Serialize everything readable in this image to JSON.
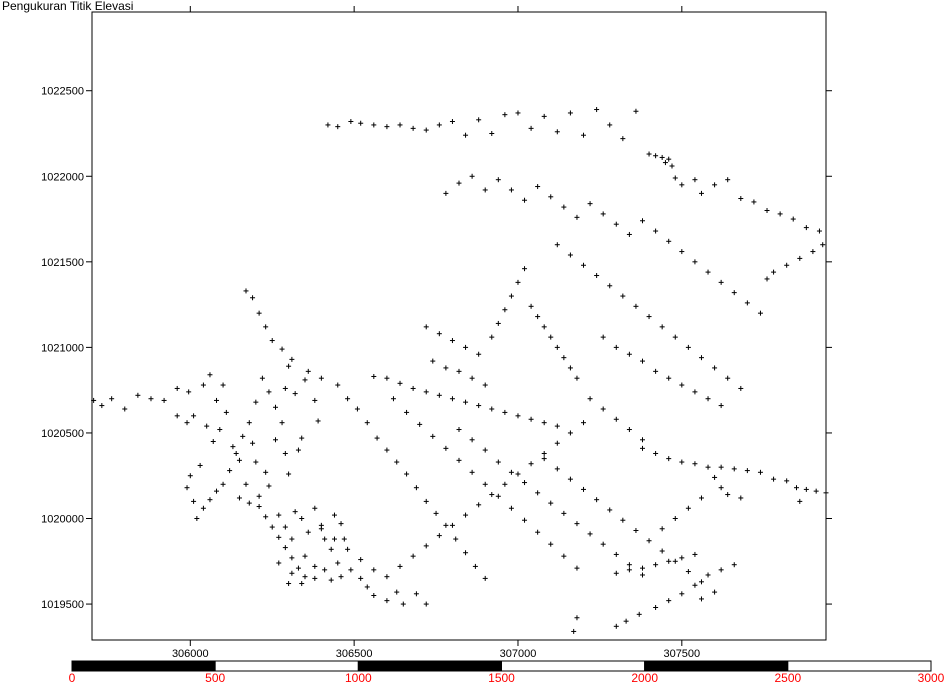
{
  "title": "Pengukuran Titik Elevasi",
  "chart_data": {
    "type": "scatter",
    "marker": "plus",
    "marker_color": "#000000",
    "xlim": [
      305700,
      307940
    ],
    "ylim": [
      1019290,
      1022960
    ],
    "x_ticks": [
      306000,
      306500,
      307000,
      307500
    ],
    "x_tick_labels": [
      "306000",
      "306500",
      "307000",
      "307500"
    ],
    "y_ticks": [
      1019500,
      1020000,
      1020500,
      1021000,
      1021500,
      1022000,
      1022500
    ],
    "y_tick_labels": [
      "1019500",
      "1020000",
      "1020500",
      "1021000",
      "1021500",
      "1022000",
      "1022500"
    ],
    "point_count_note": "",
    "points": [
      [
        305705,
        1020690
      ],
      [
        305730,
        1020660
      ],
      [
        305760,
        1020700
      ],
      [
        305800,
        1020640
      ],
      [
        305840,
        1020720
      ],
      [
        305880,
        1020700
      ],
      [
        305920,
        1020690
      ],
      [
        305960,
        1020760
      ],
      [
        305995,
        1020740
      ],
      [
        306010,
        1020600
      ],
      [
        305990,
        1020560
      ],
      [
        305960,
        1020600
      ],
      [
        306040,
        1020780
      ],
      [
        306060,
        1020840
      ],
      [
        306050,
        1020540
      ],
      [
        306080,
        1020690
      ],
      [
        306090,
        1020520
      ],
      [
        306100,
        1020780
      ],
      [
        306070,
        1020450
      ],
      [
        306030,
        1020310
      ],
      [
        306000,
        1020250
      ],
      [
        305990,
        1020180
      ],
      [
        306010,
        1020100
      ],
      [
        306110,
        1020620
      ],
      [
        306130,
        1020420
      ],
      [
        306150,
        1020340
      ],
      [
        306170,
        1020200
      ],
      [
        306190,
        1020440
      ],
      [
        306200,
        1020330
      ],
      [
        306150,
        1020120
      ],
      [
        306180,
        1020090
      ],
      [
        306210,
        1020130
      ],
      [
        306230,
        1020270
      ],
      [
        306240,
        1020190
      ],
      [
        306260,
        1020460
      ],
      [
        306280,
        1020560
      ],
      [
        306260,
        1020650
      ],
      [
        306290,
        1020760
      ],
      [
        306300,
        1020890
      ],
      [
        306320,
        1020730
      ],
      [
        306350,
        1020810
      ],
      [
        306380,
        1020690
      ],
      [
        306390,
        1020570
      ],
      [
        306340,
        1020470
      ],
      [
        306330,
        1020400
      ],
      [
        306290,
        1020380
      ],
      [
        306300,
        1020260
      ],
      [
        306270,
        1020020
      ],
      [
        306290,
        1019950
      ],
      [
        306310,
        1019880
      ],
      [
        306320,
        1020040
      ],
      [
        306340,
        1020000
      ],
      [
        306360,
        1019920
      ],
      [
        306380,
        1020060
      ],
      [
        306400,
        1019960
      ],
      [
        306410,
        1019880
      ],
      [
        306430,
        1019820
      ],
      [
        306440,
        1020020
      ],
      [
        306460,
        1019970
      ],
      [
        306470,
        1019880
      ],
      [
        306350,
        1019780
      ],
      [
        306380,
        1019720
      ],
      [
        306410,
        1019700
      ],
      [
        306450,
        1019740
      ],
      [
        306490,
        1019700
      ],
      [
        306520,
        1019650
      ],
      [
        306540,
        1019600
      ],
      [
        306560,
        1019550
      ],
      [
        306600,
        1019520
      ],
      [
        306630,
        1019570
      ],
      [
        306650,
        1019500
      ],
      [
        306690,
        1019560
      ],
      [
        306720,
        1019500
      ],
      [
        306310,
        1019680
      ],
      [
        306270,
        1019740
      ],
      [
        306300,
        1019620
      ],
      [
        306340,
        1019620
      ],
      [
        306380,
        1019650
      ],
      [
        306430,
        1019640
      ],
      [
        306460,
        1019660
      ],
      [
        306170,
        1021330
      ],
      [
        306190,
        1021290
      ],
      [
        306210,
        1021200
      ],
      [
        306230,
        1021120
      ],
      [
        306250,
        1021040
      ],
      [
        306280,
        1020990
      ],
      [
        306310,
        1020930
      ],
      [
        306360,
        1020860
      ],
      [
        306400,
        1020820
      ],
      [
        306450,
        1020780
      ],
      [
        306480,
        1020700
      ],
      [
        306510,
        1020640
      ],
      [
        306540,
        1020560
      ],
      [
        306570,
        1020470
      ],
      [
        306600,
        1020400
      ],
      [
        306630,
        1020330
      ],
      [
        306660,
        1020260
      ],
      [
        306690,
        1020180
      ],
      [
        306720,
        1020100
      ],
      [
        306750,
        1020030
      ],
      [
        306780,
        1019960
      ],
      [
        306810,
        1019880
      ],
      [
        306840,
        1019800
      ],
      [
        306870,
        1019720
      ],
      [
        306900,
        1019650
      ],
      [
        306560,
        1020830
      ],
      [
        306600,
        1020820
      ],
      [
        306640,
        1020790
      ],
      [
        306680,
        1020760
      ],
      [
        306720,
        1020740
      ],
      [
        306760,
        1020720
      ],
      [
        306800,
        1020700
      ],
      [
        306840,
        1020680
      ],
      [
        306880,
        1020660
      ],
      [
        306920,
        1020640
      ],
      [
        306960,
        1020620
      ],
      [
        307000,
        1020600
      ],
      [
        307040,
        1020580
      ],
      [
        307080,
        1020560
      ],
      [
        307120,
        1020540
      ],
      [
        306620,
        1020700
      ],
      [
        306660,
        1020620
      ],
      [
        306700,
        1020550
      ],
      [
        306740,
        1020480
      ],
      [
        306780,
        1020410
      ],
      [
        306820,
        1020340
      ],
      [
        306860,
        1020270
      ],
      [
        306900,
        1020200
      ],
      [
        306940,
        1020130
      ],
      [
        306980,
        1020060
      ],
      [
        307020,
        1019990
      ],
      [
        307060,
        1019920
      ],
      [
        307100,
        1019850
      ],
      [
        307140,
        1019780
      ],
      [
        307180,
        1019710
      ],
      [
        306820,
        1020520
      ],
      [
        306860,
        1020460
      ],
      [
        306900,
        1020400
      ],
      [
        306940,
        1020330
      ],
      [
        306980,
        1020270
      ],
      [
        307020,
        1020210
      ],
      [
        307060,
        1020150
      ],
      [
        307100,
        1020090
      ],
      [
        307140,
        1020030
      ],
      [
        307180,
        1019970
      ],
      [
        307220,
        1019910
      ],
      [
        307260,
        1019850
      ],
      [
        307300,
        1019790
      ],
      [
        307340,
        1019730
      ],
      [
        307380,
        1019670
      ],
      [
        307080,
        1020350
      ],
      [
        307120,
        1020290
      ],
      [
        307160,
        1020230
      ],
      [
        307200,
        1020170
      ],
      [
        307240,
        1020110
      ],
      [
        307280,
        1020050
      ],
      [
        307320,
        1019990
      ],
      [
        307360,
        1019930
      ],
      [
        307400,
        1019870
      ],
      [
        307440,
        1019810
      ],
      [
        307480,
        1019750
      ],
      [
        307520,
        1019690
      ],
      [
        307560,
        1019630
      ],
      [
        307600,
        1019570
      ],
      [
        307180,
        1019420
      ],
      [
        307170,
        1019340
      ],
      [
        307300,
        1019370
      ],
      [
        307330,
        1019400
      ],
      [
        307370,
        1019440
      ],
      [
        307420,
        1019480
      ],
      [
        307460,
        1019520
      ],
      [
        307500,
        1019560
      ],
      [
        307540,
        1019610
      ],
      [
        307560,
        1019530
      ],
      [
        307580,
        1019670
      ],
      [
        307620,
        1019700
      ],
      [
        307660,
        1019730
      ],
      [
        307300,
        1019680
      ],
      [
        307340,
        1019700
      ],
      [
        307380,
        1019710
      ],
      [
        307420,
        1019730
      ],
      [
        307460,
        1019750
      ],
      [
        307500,
        1019770
      ],
      [
        307540,
        1019790
      ],
      [
        307380,
        1020410
      ],
      [
        307420,
        1020380
      ],
      [
        307460,
        1020350
      ],
      [
        307500,
        1020330
      ],
      [
        307540,
        1020320
      ],
      [
        307580,
        1020300
      ],
      [
        307620,
        1020300
      ],
      [
        307660,
        1020290
      ],
      [
        307700,
        1020280
      ],
      [
        307740,
        1020270
      ],
      [
        307780,
        1020230
      ],
      [
        307820,
        1020220
      ],
      [
        307850,
        1020180
      ],
      [
        307880,
        1020170
      ],
      [
        307910,
        1020160
      ],
      [
        307940,
        1020150
      ],
      [
        307860,
        1020100
      ],
      [
        307600,
        1020240
      ],
      [
        307620,
        1020180
      ],
      [
        307560,
        1020120
      ],
      [
        307520,
        1020060
      ],
      [
        307480,
        1020000
      ],
      [
        307440,
        1019940
      ],
      [
        307640,
        1020140
      ],
      [
        307680,
        1020120
      ],
      [
        306420,
        1022300
      ],
      [
        306450,
        1022290
      ],
      [
        306490,
        1022320
      ],
      [
        306520,
        1022310
      ],
      [
        306560,
        1022300
      ],
      [
        306600,
        1022290
      ],
      [
        306640,
        1022300
      ],
      [
        306680,
        1022280
      ],
      [
        306720,
        1022270
      ],
      [
        306760,
        1022300
      ],
      [
        306800,
        1022320
      ],
      [
        306840,
        1022240
      ],
      [
        306880,
        1022330
      ],
      [
        306920,
        1022250
      ],
      [
        306960,
        1022360
      ],
      [
        307000,
        1022370
      ],
      [
        307040,
        1022280
      ],
      [
        307080,
        1022350
      ],
      [
        307120,
        1022260
      ],
      [
        307160,
        1022370
      ],
      [
        307200,
        1022240
      ],
      [
        307240,
        1022390
      ],
      [
        307280,
        1022300
      ],
      [
        307320,
        1022220
      ],
      [
        307360,
        1022380
      ],
      [
        307400,
        1022130
      ],
      [
        307420,
        1022120
      ],
      [
        307440,
        1022110
      ],
      [
        307460,
        1022100
      ],
      [
        307450,
        1022080
      ],
      [
        307470,
        1022060
      ],
      [
        307480,
        1021990
      ],
      [
        307500,
        1021950
      ],
      [
        307540,
        1021980
      ],
      [
        307560,
        1021900
      ],
      [
        307600,
        1021950
      ],
      [
        307640,
        1021980
      ],
      [
        307680,
        1021870
      ],
      [
        307720,
        1021850
      ],
      [
        307760,
        1021800
      ],
      [
        307800,
        1021780
      ],
      [
        307840,
        1021750
      ],
      [
        307880,
        1021700
      ],
      [
        307920,
        1021680
      ],
      [
        307930,
        1021600
      ],
      [
        307900,
        1021560
      ],
      [
        307860,
        1021520
      ],
      [
        307820,
        1021480
      ],
      [
        307780,
        1021440
      ],
      [
        307760,
        1021400
      ],
      [
        306780,
        1021900
      ],
      [
        306820,
        1021960
      ],
      [
        306860,
        1022000
      ],
      [
        306900,
        1021920
      ],
      [
        306940,
        1021980
      ],
      [
        306980,
        1021920
      ],
      [
        307020,
        1021860
      ],
      [
        307060,
        1021940
      ],
      [
        307100,
        1021880
      ],
      [
        307140,
        1021820
      ],
      [
        307180,
        1021760
      ],
      [
        307220,
        1021840
      ],
      [
        307260,
        1021780
      ],
      [
        307300,
        1021720
      ],
      [
        307340,
        1021660
      ],
      [
        307380,
        1021740
      ],
      [
        307420,
        1021680
      ],
      [
        307460,
        1021620
      ],
      [
        307500,
        1021560
      ],
      [
        307540,
        1021500
      ],
      [
        307580,
        1021440
      ],
      [
        307620,
        1021380
      ],
      [
        307660,
        1021320
      ],
      [
        307700,
        1021260
      ],
      [
        307740,
        1021200
      ],
      [
        307120,
        1021600
      ],
      [
        307160,
        1021540
      ],
      [
        307200,
        1021480
      ],
      [
        307240,
        1021420
      ],
      [
        307280,
        1021360
      ],
      [
        307320,
        1021300
      ],
      [
        307360,
        1021240
      ],
      [
        307400,
        1021180
      ],
      [
        307440,
        1021120
      ],
      [
        307480,
        1021060
      ],
      [
        307520,
        1021000
      ],
      [
        307560,
        1020940
      ],
      [
        307600,
        1020880
      ],
      [
        307640,
        1020820
      ],
      [
        307680,
        1020760
      ],
      [
        307020,
        1021460
      ],
      [
        307000,
        1021380
      ],
      [
        306980,
        1021300
      ],
      [
        306960,
        1021220
      ],
      [
        306940,
        1021140
      ],
      [
        306920,
        1021060
      ],
      [
        307040,
        1021240
      ],
      [
        307060,
        1021180
      ],
      [
        307080,
        1021120
      ],
      [
        307100,
        1021060
      ],
      [
        307120,
        1021000
      ],
      [
        307140,
        1020940
      ],
      [
        307160,
        1020880
      ],
      [
        307180,
        1020820
      ],
      [
        306720,
        1021120
      ],
      [
        306760,
        1021080
      ],
      [
        306800,
        1021040
      ],
      [
        306840,
        1021000
      ],
      [
        306880,
        1020960
      ],
      [
        306740,
        1020920
      ],
      [
        306780,
        1020880
      ],
      [
        306820,
        1020860
      ],
      [
        306860,
        1020820
      ],
      [
        306900,
        1020780
      ],
      [
        307260,
        1021060
      ],
      [
        307300,
        1021000
      ],
      [
        307340,
        1020960
      ],
      [
        307380,
        1020920
      ],
      [
        307420,
        1020860
      ],
      [
        307460,
        1020820
      ],
      [
        307500,
        1020780
      ],
      [
        307540,
        1020740
      ],
      [
        307580,
        1020700
      ],
      [
        307620,
        1020660
      ],
      [
        307220,
        1020700
      ],
      [
        307260,
        1020640
      ],
      [
        307300,
        1020580
      ],
      [
        307340,
        1020520
      ],
      [
        307380,
        1020460
      ],
      [
        307200,
        1020560
      ],
      [
        307160,
        1020500
      ],
      [
        307120,
        1020440
      ],
      [
        307080,
        1020380
      ],
      [
        307040,
        1020320
      ],
      [
        307000,
        1020260
      ],
      [
        306960,
        1020200
      ],
      [
        306920,
        1020140
      ],
      [
        306880,
        1020080
      ],
      [
        306840,
        1020020
      ],
      [
        306800,
        1019960
      ],
      [
        306760,
        1019900
      ],
      [
        306720,
        1019840
      ],
      [
        306680,
        1019780
      ],
      [
        306640,
        1019720
      ],
      [
        306600,
        1019660
      ],
      [
        306560,
        1019700
      ],
      [
        306520,
        1019760
      ],
      [
        306480,
        1019820
      ],
      [
        306440,
        1019880
      ],
      [
        306400,
        1019940
      ],
      [
        306220,
        1020820
      ],
      [
        306240,
        1020740
      ],
      [
        306200,
        1020680
      ],
      [
        306180,
        1020560
      ],
      [
        306160,
        1020480
      ],
      [
        306140,
        1020380
      ],
      [
        306120,
        1020280
      ],
      [
        306100,
        1020200
      ],
      [
        306080,
        1020160
      ],
      [
        306060,
        1020110
      ],
      [
        306040,
        1020060
      ],
      [
        306020,
        1020000
      ],
      [
        306210,
        1020070
      ],
      [
        306230,
        1020010
      ],
      [
        306250,
        1019950
      ],
      [
        306270,
        1019890
      ],
      [
        306290,
        1019830
      ],
      [
        306310,
        1019770
      ],
      [
        306330,
        1019710
      ],
      [
        306350,
        1019660
      ]
    ]
  },
  "scalebar": {
    "labels": [
      "0",
      "500",
      "1000",
      "1500",
      "2000",
      "2500",
      "3000"
    ],
    "label_color": "#ff0000"
  }
}
